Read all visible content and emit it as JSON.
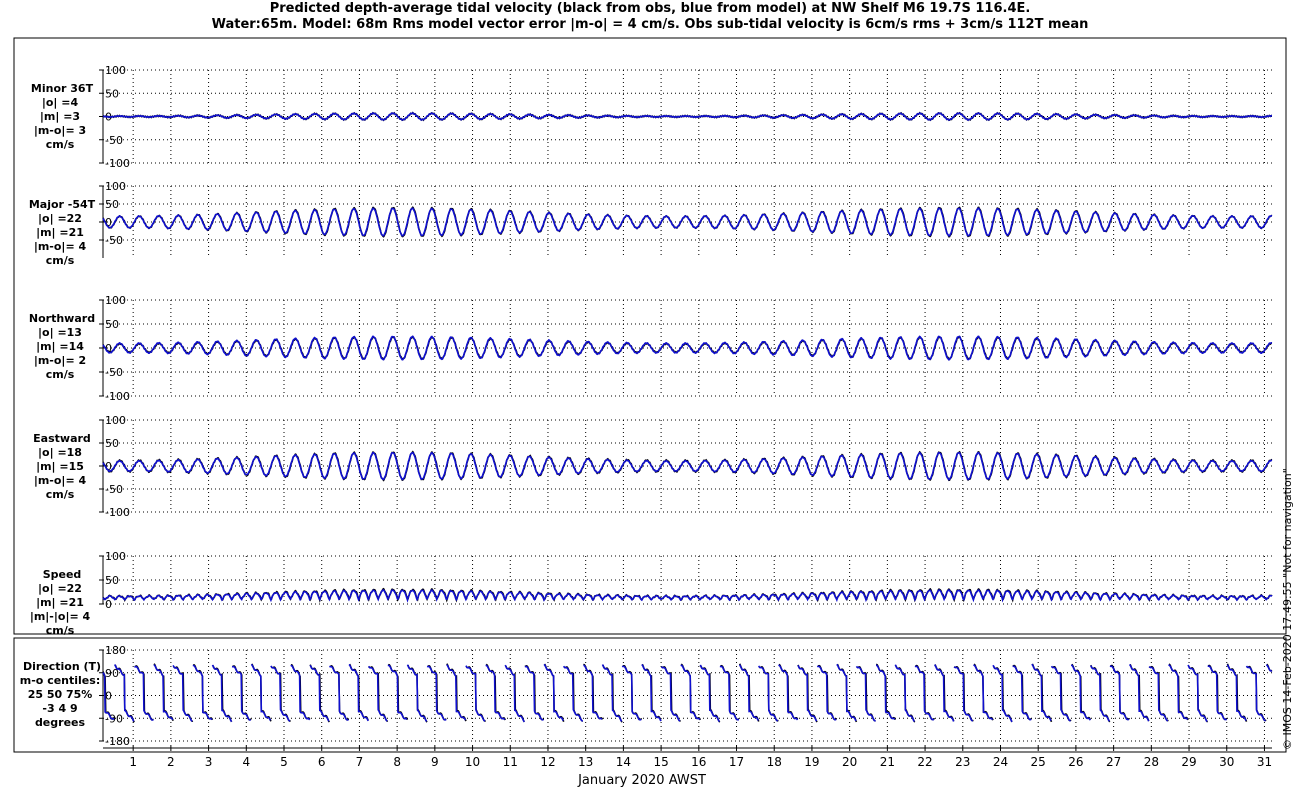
{
  "title_line1": "Predicted depth-average tidal velocity (black from obs, blue from model) at NW Shelf M6 19.7S 116.4E.",
  "title_line2": "Water:65m. Model: 68m  Rms model vector error |m-o| = 4 cm/s. Obs sub-tidal velocity is 6cm/s rms + 3cm/s 112T mean",
  "credit": "© IMOS 14-Feb-2020 17:49:55  \"Not for navigation\"",
  "colors": {
    "obs": "#000000",
    "model": "#1010d0",
    "grid": "#000000"
  },
  "chart_data": {
    "type": "line",
    "xlabel": "January 2020 AWST",
    "x_tick_labels": [
      "1",
      "2",
      "3",
      "4",
      "5",
      "6",
      "7",
      "8",
      "9",
      "10",
      "11",
      "12",
      "13",
      "14",
      "15",
      "16",
      "17",
      "18",
      "19",
      "20",
      "21",
      "22",
      "23",
      "24",
      "25",
      "26",
      "27",
      "28",
      "29",
      "30",
      "31"
    ],
    "xlim_days": [
      0.2,
      31.2
    ],
    "series_names": [
      "obs",
      "model"
    ],
    "panels": [
      {
        "id": "minor",
        "labels": [
          "Minor 36T",
          "|o| =4",
          "|m| =3",
          "|m-o|= 3",
          "cm/s"
        ],
        "yticks": [
          "100",
          "50",
          "0",
          "-50",
          "-100"
        ],
        "ylim": [
          -100,
          100
        ],
        "kind": "velocity",
        "obs": {
          "amp_mean": 4,
          "amp_var": 3
        },
        "model": {
          "amp_mean": 4,
          "amp_var": 3
        }
      },
      {
        "id": "major",
        "labels": [
          "Major -54T",
          "|o| =22",
          "|m| =21",
          "|m-o|= 4",
          "cm/s"
        ],
        "yticks": [
          "100",
          "50",
          "0",
          "-50"
        ],
        "ylim": [
          -100,
          100
        ],
        "kind": "velocity",
        "obs": {
          "amp_mean": 28,
          "amp_var": 12
        },
        "model": {
          "amp_mean": 27,
          "amp_var": 11
        }
      },
      {
        "id": "northward",
        "labels": [
          "Northward",
          "|o| =13",
          "|m| =14",
          "|m-o|= 2",
          "cm/s"
        ],
        "yticks": [
          "100",
          "50",
          "0",
          "-50",
          "-100"
        ],
        "ylim": [
          -100,
          100
        ],
        "kind": "velocity",
        "obs": {
          "amp_mean": 16,
          "amp_var": 7
        },
        "model": {
          "amp_mean": 17,
          "amp_var": 7
        }
      },
      {
        "id": "eastward",
        "labels": [
          "Eastward",
          "|o| =18",
          "|m| =15",
          "|m-o|= 4",
          "cm/s"
        ],
        "yticks": [
          "100",
          "50",
          "0",
          "-50",
          "-100"
        ],
        "ylim": [
          -100,
          100
        ],
        "kind": "velocity",
        "obs": {
          "amp_mean": 21,
          "amp_var": 9
        },
        "model": {
          "amp_mean": 20,
          "amp_var": 9
        }
      },
      {
        "id": "speed",
        "labels": [
          "Speed",
          "|o| =22",
          "|m| =21",
          "|m|-|o|= 4",
          "cm/s"
        ],
        "yticks": [
          "100",
          "50",
          "0"
        ],
        "ylim": [
          0,
          100
        ],
        "kind": "speed",
        "obs": {
          "amp_mean": 26,
          "amp_var": 12
        },
        "model": {
          "amp_mean": 25,
          "amp_var": 11
        }
      },
      {
        "id": "direction",
        "labels": [
          "Direction (T)",
          "m-o centiles:",
          "25  50  75%",
          "-3   4   9",
          "degrees"
        ],
        "yticks": [
          "180",
          "90",
          "0",
          "-90",
          "-180"
        ],
        "ylim": [
          -180,
          180
        ],
        "kind": "direction"
      }
    ]
  }
}
